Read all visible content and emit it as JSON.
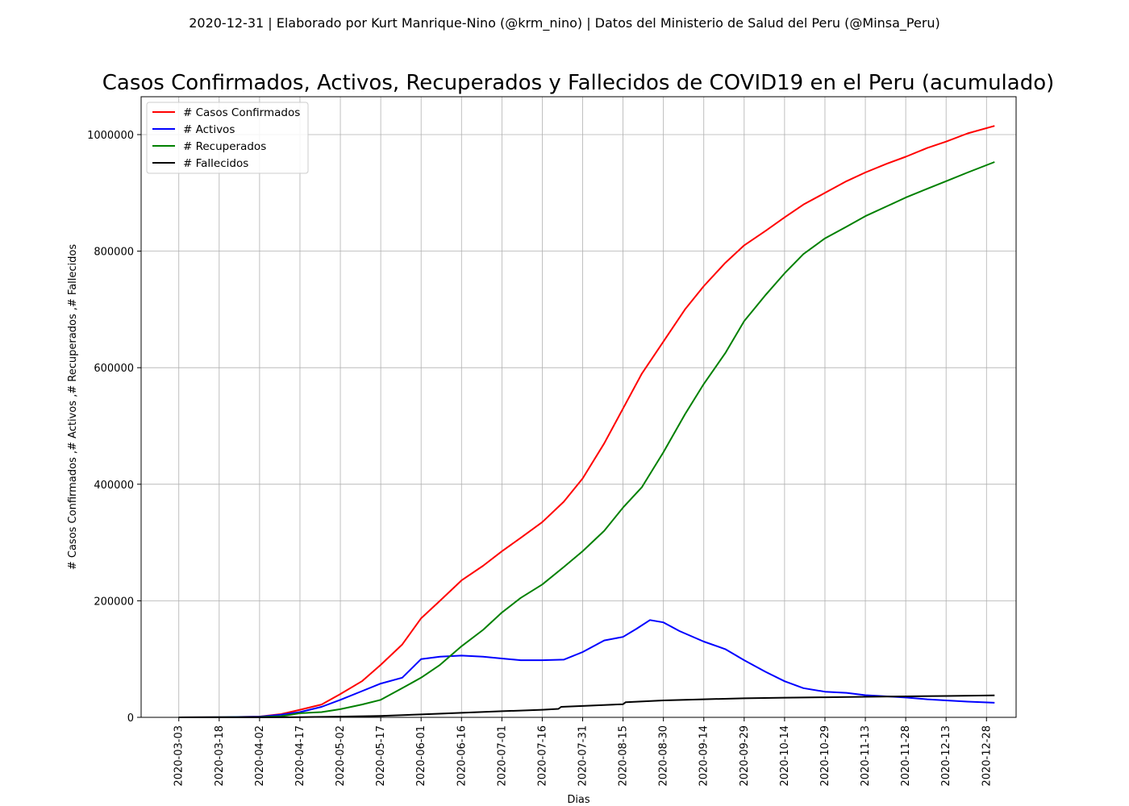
{
  "chart_data": {
    "type": "line",
    "suptitle": "2020-12-31 | Elaborado por Kurt Manrique-Nino (@krm_nino) | Datos del Ministerio de Salud del Peru (@Minsa_Peru)",
    "title": "Casos Confirmados, Activos, Recuperados y Fallecidos de COVID19 en el Peru (acumulado)",
    "xlabel": "Dias",
    "ylabel": "# Casos Confirmados ,# Activos ,# Recuperados ,# Fallecidos",
    "x_range": [
      "2020-02-18",
      "2021-01-08"
    ],
    "ylim": [
      0,
      1065000
    ],
    "x_ticks": [
      "2020-03-03",
      "2020-03-18",
      "2020-04-02",
      "2020-04-17",
      "2020-05-02",
      "2020-05-17",
      "2020-06-01",
      "2020-06-16",
      "2020-07-01",
      "2020-07-16",
      "2020-07-31",
      "2020-08-15",
      "2020-08-30",
      "2020-09-14",
      "2020-09-29",
      "2020-10-14",
      "2020-10-29",
      "2020-11-13",
      "2020-11-28",
      "2020-12-13",
      "2020-12-28"
    ],
    "y_ticks": [
      0,
      200000,
      400000,
      600000,
      800000,
      1000000
    ],
    "grid": true,
    "legend_position": "upper-left",
    "series": [
      {
        "name": "# Casos Confirmados",
        "color": "#ff0000",
        "points": [
          [
            "2020-03-03",
            0
          ],
          [
            "2020-03-20",
            300
          ],
          [
            "2020-04-02",
            1400
          ],
          [
            "2020-04-10",
            5500
          ],
          [
            "2020-04-17",
            13000
          ],
          [
            "2020-04-25",
            22000
          ],
          [
            "2020-05-02",
            40000
          ],
          [
            "2020-05-10",
            62000
          ],
          [
            "2020-05-17",
            90000
          ],
          [
            "2020-05-25",
            125000
          ],
          [
            "2020-06-01",
            170000
          ],
          [
            "2020-06-08",
            200000
          ],
          [
            "2020-06-16",
            235000
          ],
          [
            "2020-06-24",
            260000
          ],
          [
            "2020-07-01",
            285000
          ],
          [
            "2020-07-08",
            308000
          ],
          [
            "2020-07-16",
            335000
          ],
          [
            "2020-07-24",
            370000
          ],
          [
            "2020-07-31",
            410000
          ],
          [
            "2020-08-08",
            470000
          ],
          [
            "2020-08-15",
            530000
          ],
          [
            "2020-08-22",
            590000
          ],
          [
            "2020-08-30",
            645000
          ],
          [
            "2020-09-07",
            700000
          ],
          [
            "2020-09-14",
            740000
          ],
          [
            "2020-09-22",
            780000
          ],
          [
            "2020-09-29",
            810000
          ],
          [
            "2020-10-07",
            835000
          ],
          [
            "2020-10-14",
            858000
          ],
          [
            "2020-10-21",
            880000
          ],
          [
            "2020-10-29",
            900000
          ],
          [
            "2020-11-06",
            920000
          ],
          [
            "2020-11-13",
            935000
          ],
          [
            "2020-11-21",
            950000
          ],
          [
            "2020-11-28",
            962000
          ],
          [
            "2020-12-06",
            977000
          ],
          [
            "2020-12-13",
            988000
          ],
          [
            "2020-12-21",
            1002000
          ],
          [
            "2020-12-31",
            1015000
          ]
        ]
      },
      {
        "name": "# Activos",
        "color": "#0000ff",
        "points": [
          [
            "2020-03-03",
            0
          ],
          [
            "2020-03-20",
            300
          ],
          [
            "2020-04-02",
            1200
          ],
          [
            "2020-04-10",
            4500
          ],
          [
            "2020-04-17",
            9000
          ],
          [
            "2020-04-25",
            18000
          ],
          [
            "2020-05-02",
            30000
          ],
          [
            "2020-05-10",
            45000
          ],
          [
            "2020-05-17",
            58000
          ],
          [
            "2020-05-25",
            68000
          ],
          [
            "2020-06-01",
            100000
          ],
          [
            "2020-06-08",
            104000
          ],
          [
            "2020-06-16",
            106000
          ],
          [
            "2020-06-24",
            104000
          ],
          [
            "2020-07-01",
            101000
          ],
          [
            "2020-07-08",
            98000
          ],
          [
            "2020-07-16",
            98000
          ],
          [
            "2020-07-24",
            99000
          ],
          [
            "2020-07-31",
            112000
          ],
          [
            "2020-08-08",
            132000
          ],
          [
            "2020-08-15",
            138000
          ],
          [
            "2020-08-20",
            152000
          ],
          [
            "2020-08-25",
            167000
          ],
          [
            "2020-08-30",
            163000
          ],
          [
            "2020-09-05",
            148000
          ],
          [
            "2020-09-14",
            130000
          ],
          [
            "2020-09-22",
            117000
          ],
          [
            "2020-09-29",
            98000
          ],
          [
            "2020-10-07",
            78000
          ],
          [
            "2020-10-14",
            62000
          ],
          [
            "2020-10-21",
            50000
          ],
          [
            "2020-10-29",
            44000
          ],
          [
            "2020-11-06",
            42000
          ],
          [
            "2020-11-13",
            38000
          ],
          [
            "2020-11-21",
            36000
          ],
          [
            "2020-11-28",
            34000
          ],
          [
            "2020-12-06",
            31000
          ],
          [
            "2020-12-13",
            29000
          ],
          [
            "2020-12-21",
            27000
          ],
          [
            "2020-12-31",
            25000
          ]
        ]
      },
      {
        "name": "# Recuperados",
        "color": "#008000",
        "points": [
          [
            "2020-03-03",
            0
          ],
          [
            "2020-04-02",
            500
          ],
          [
            "2020-04-10",
            2000
          ],
          [
            "2020-04-17",
            7000
          ],
          [
            "2020-04-25",
            9000
          ],
          [
            "2020-05-02",
            14000
          ],
          [
            "2020-05-10",
            22000
          ],
          [
            "2020-05-17",
            30000
          ],
          [
            "2020-05-25",
            50000
          ],
          [
            "2020-06-01",
            68000
          ],
          [
            "2020-06-08",
            90000
          ],
          [
            "2020-06-16",
            122000
          ],
          [
            "2020-06-24",
            150000
          ],
          [
            "2020-07-01",
            180000
          ],
          [
            "2020-07-08",
            205000
          ],
          [
            "2020-07-16",
            228000
          ],
          [
            "2020-07-24",
            258000
          ],
          [
            "2020-07-31",
            285000
          ],
          [
            "2020-08-08",
            320000
          ],
          [
            "2020-08-15",
            360000
          ],
          [
            "2020-08-22",
            395000
          ],
          [
            "2020-08-30",
            455000
          ],
          [
            "2020-09-07",
            520000
          ],
          [
            "2020-09-14",
            572000
          ],
          [
            "2020-09-22",
            625000
          ],
          [
            "2020-09-29",
            680000
          ],
          [
            "2020-10-07",
            725000
          ],
          [
            "2020-10-14",
            762000
          ],
          [
            "2020-10-21",
            795000
          ],
          [
            "2020-10-29",
            822000
          ],
          [
            "2020-11-06",
            842000
          ],
          [
            "2020-11-13",
            860000
          ],
          [
            "2020-11-21",
            877000
          ],
          [
            "2020-11-28",
            892000
          ],
          [
            "2020-12-06",
            907000
          ],
          [
            "2020-12-13",
            920000
          ],
          [
            "2020-12-21",
            935000
          ],
          [
            "2020-12-31",
            953000
          ]
        ]
      },
      {
        "name": "# Fallecidos",
        "color": "#000000",
        "points": [
          [
            "2020-03-03",
            0
          ],
          [
            "2020-04-02",
            50
          ],
          [
            "2020-04-17",
            400
          ],
          [
            "2020-05-02",
            1200
          ],
          [
            "2020-05-17",
            2500
          ],
          [
            "2020-06-01",
            5000
          ],
          [
            "2020-06-16",
            7800
          ],
          [
            "2020-07-01",
            10500
          ],
          [
            "2020-07-16",
            13000
          ],
          [
            "2020-07-22",
            14500
          ],
          [
            "2020-07-23",
            18000
          ],
          [
            "2020-07-31",
            19500
          ],
          [
            "2020-08-15",
            22500
          ],
          [
            "2020-08-16",
            26000
          ],
          [
            "2020-08-30",
            29000
          ],
          [
            "2020-09-14",
            31000
          ],
          [
            "2020-09-29",
            32700
          ],
          [
            "2020-10-14",
            33800
          ],
          [
            "2020-10-29",
            34500
          ],
          [
            "2020-11-13",
            35300
          ],
          [
            "2020-11-28",
            36000
          ],
          [
            "2020-12-13",
            36700
          ],
          [
            "2020-12-31",
            37700
          ]
        ]
      }
    ]
  }
}
